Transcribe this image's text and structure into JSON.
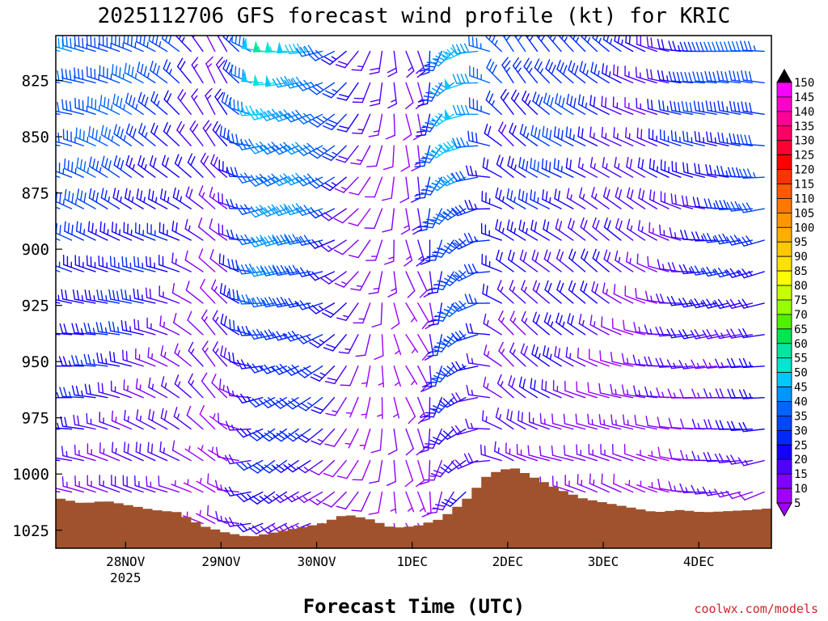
{
  "chart_data": {
    "type": "wind-barb-profile",
    "title": "2025112706 GFS forecast wind profile (kt) for KRIC",
    "xlabel": "Forecast Time (UTC)",
    "credit": "coolwx.com/models",
    "x_ticks": [
      "28NOV",
      "29NOV",
      "30NOV",
      "1DEC",
      "2DEC",
      "3DEC",
      "4DEC"
    ],
    "x_year": "2025",
    "x_range_days": [
      0.27,
      7.76
    ],
    "y_ticks": [
      825,
      850,
      875,
      900,
      925,
      950,
      975,
      1000,
      1025
    ],
    "y_range_hpa": [
      805,
      1033
    ],
    "colorbar_labels": [
      150,
      145,
      140,
      135,
      130,
      125,
      120,
      115,
      110,
      105,
      100,
      95,
      90,
      85,
      80,
      75,
      70,
      65,
      60,
      55,
      50,
      45,
      40,
      35,
      30,
      25,
      20,
      15,
      10,
      5
    ],
    "colorbar_colors": [
      "#000000",
      "#ff00ff",
      "#ff00cc",
      "#ff0099",
      "#ff0066",
      "#ff0033",
      "#ff0000",
      "#ff3300",
      "#ff5a00",
      "#ff7800",
      "#ff9600",
      "#ffaf00",
      "#ffc800",
      "#ffe100",
      "#ffff00",
      "#c8ff00",
      "#96ff00",
      "#50f000",
      "#00e650",
      "#00e6a0",
      "#00e6d2",
      "#00c8ff",
      "#0096ff",
      "#0064ff",
      "#0046ff",
      "#0028ff",
      "#1400ff",
      "#5000ff",
      "#8200ff",
      "#a000ff"
    ],
    "surface_pressure": [
      {
        "day": 0.27,
        "p": 1011
      },
      {
        "day": 0.5,
        "p": 1013
      },
      {
        "day": 0.75,
        "p": 1012
      },
      {
        "day": 1.0,
        "p": 1014
      },
      {
        "day": 1.25,
        "p": 1016
      },
      {
        "day": 1.5,
        "p": 1017
      },
      {
        "day": 1.75,
        "p": 1023
      },
      {
        "day": 2.0,
        "p": 1026
      },
      {
        "day": 2.25,
        "p": 1028
      },
      {
        "day": 2.5,
        "p": 1026
      },
      {
        "day": 2.75,
        "p": 1024
      },
      {
        "day": 3.0,
        "p": 1022
      },
      {
        "day": 3.25,
        "p": 1018
      },
      {
        "day": 3.5,
        "p": 1020
      },
      {
        "day": 3.75,
        "p": 1024
      },
      {
        "day": 4.0,
        "p": 1023
      },
      {
        "day": 4.25,
        "p": 1020
      },
      {
        "day": 4.5,
        "p": 1012
      },
      {
        "day": 4.75,
        "p": 1000
      },
      {
        "day": 5.0,
        "p": 997
      },
      {
        "day": 5.25,
        "p": 1002
      },
      {
        "day": 5.5,
        "p": 1007
      },
      {
        "day": 5.75,
        "p": 1011
      },
      {
        "day": 6.0,
        "p": 1013
      },
      {
        "day": 6.25,
        "p": 1015
      },
      {
        "day": 6.5,
        "p": 1017
      },
      {
        "day": 6.75,
        "p": 1016
      },
      {
        "day": 7.0,
        "p": 1017
      },
      {
        "day": 7.5,
        "p": 1016
      },
      {
        "day": 7.76,
        "p": 1015
      }
    ],
    "wind_profile_summary": [
      {
        "day": 0.27,
        "dir": 290,
        "kt": 30
      },
      {
        "day": 1.0,
        "dir": 300,
        "kt": 28
      },
      {
        "day": 1.5,
        "dir": 305,
        "kt": 22
      },
      {
        "day": 2.0,
        "dir": 330,
        "kt": 12
      },
      {
        "day": 2.5,
        "dir": 260,
        "kt": 40
      },
      {
        "day": 3.0,
        "dir": 260,
        "kt": 35
      },
      {
        "day": 3.5,
        "dir": 220,
        "kt": 12
      },
      {
        "day": 4.0,
        "dir": 160,
        "kt": 10
      },
      {
        "day": 4.5,
        "dir": 240,
        "kt": 40
      },
      {
        "day": 4.75,
        "dir": 270,
        "kt": 28
      },
      {
        "day": 5.0,
        "dir": 320,
        "kt": 20
      },
      {
        "day": 5.5,
        "dir": 310,
        "kt": 25
      },
      {
        "day": 6.0,
        "dir": 310,
        "kt": 18
      },
      {
        "day": 6.5,
        "dir": 300,
        "kt": 15
      },
      {
        "day": 7.0,
        "dir": 280,
        "kt": 22
      },
      {
        "day": 7.76,
        "dir": 270,
        "kt": 28
      }
    ]
  }
}
